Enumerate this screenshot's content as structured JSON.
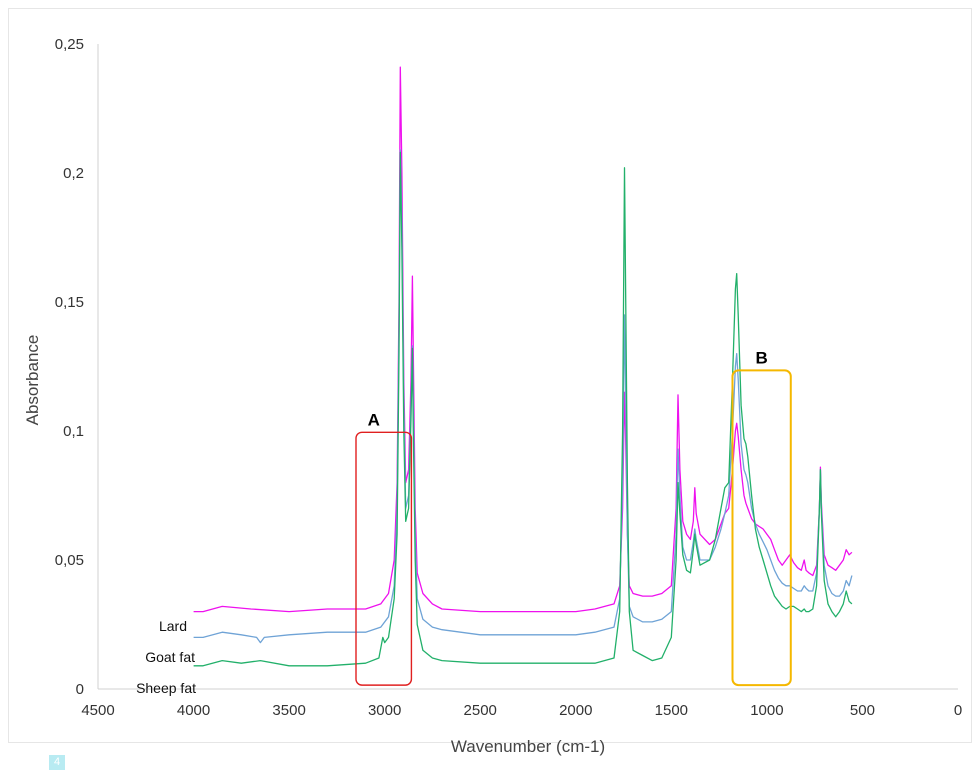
{
  "page_badge": "4",
  "chart_data": {
    "type": "line",
    "title": "",
    "xlabel": "Wavenumber (cm-1)",
    "ylabel": "Absorbance",
    "xlim": [
      4500,
      0
    ],
    "ylim": [
      0,
      0.25
    ],
    "x_reversed": true,
    "xticks": [
      "4500",
      "4000",
      "3500",
      "3000",
      "2500",
      "2000",
      "1500",
      "1000",
      "500",
      "0"
    ],
    "yticks": [
      "0",
      "0,05",
      "0,1",
      "0,15",
      "0,2",
      "0,25"
    ],
    "grid": false,
    "series": [
      {
        "name": "Lard",
        "color": "#ee11ee",
        "points": [
          [
            4000,
            0.03
          ],
          [
            3950,
            0.03
          ],
          [
            3850,
            0.032
          ],
          [
            3700,
            0.031
          ],
          [
            3500,
            0.03
          ],
          [
            3300,
            0.031
          ],
          [
            3100,
            0.031
          ],
          [
            3020,
            0.033
          ],
          [
            2980,
            0.037
          ],
          [
            2950,
            0.05
          ],
          [
            2935,
            0.08
          ],
          [
            2925,
            0.15
          ],
          [
            2918,
            0.241
          ],
          [
            2910,
            0.2
          ],
          [
            2900,
            0.12
          ],
          [
            2890,
            0.08
          ],
          [
            2875,
            0.085
          ],
          [
            2862,
            0.12
          ],
          [
            2855,
            0.16
          ],
          [
            2850,
            0.13
          ],
          [
            2840,
            0.07
          ],
          [
            2830,
            0.045
          ],
          [
            2800,
            0.037
          ],
          [
            2750,
            0.033
          ],
          [
            2700,
            0.031
          ],
          [
            2500,
            0.03
          ],
          [
            2200,
            0.03
          ],
          [
            2000,
            0.03
          ],
          [
            1900,
            0.031
          ],
          [
            1800,
            0.033
          ],
          [
            1770,
            0.04
          ],
          [
            1755,
            0.07
          ],
          [
            1745,
            0.115
          ],
          [
            1740,
            0.1
          ],
          [
            1730,
            0.06
          ],
          [
            1720,
            0.04
          ],
          [
            1700,
            0.037
          ],
          [
            1650,
            0.036
          ],
          [
            1600,
            0.036
          ],
          [
            1550,
            0.037
          ],
          [
            1500,
            0.04
          ],
          [
            1475,
            0.07
          ],
          [
            1465,
            0.114
          ],
          [
            1455,
            0.085
          ],
          [
            1440,
            0.065
          ],
          [
            1420,
            0.06
          ],
          [
            1400,
            0.058
          ],
          [
            1385,
            0.065
          ],
          [
            1377,
            0.078
          ],
          [
            1370,
            0.068
          ],
          [
            1350,
            0.06
          ],
          [
            1300,
            0.056
          ],
          [
            1270,
            0.058
          ],
          [
            1240,
            0.064
          ],
          [
            1220,
            0.068
          ],
          [
            1200,
            0.07
          ],
          [
            1180,
            0.085
          ],
          [
            1165,
            0.1
          ],
          [
            1158,
            0.103
          ],
          [
            1150,
            0.098
          ],
          [
            1135,
            0.085
          ],
          [
            1120,
            0.075
          ],
          [
            1110,
            0.072
          ],
          [
            1100,
            0.07
          ],
          [
            1080,
            0.066
          ],
          [
            1060,
            0.064
          ],
          [
            1040,
            0.063
          ],
          [
            1020,
            0.062
          ],
          [
            1000,
            0.06
          ],
          [
            980,
            0.058
          ],
          [
            960,
            0.054
          ],
          [
            940,
            0.05
          ],
          [
            920,
            0.048
          ],
          [
            900,
            0.05
          ],
          [
            880,
            0.052
          ],
          [
            860,
            0.049
          ],
          [
            840,
            0.047
          ],
          [
            820,
            0.046
          ],
          [
            805,
            0.05
          ],
          [
            795,
            0.046
          ],
          [
            780,
            0.045
          ],
          [
            760,
            0.044
          ],
          [
            740,
            0.048
          ],
          [
            725,
            0.07
          ],
          [
            720,
            0.086
          ],
          [
            715,
            0.072
          ],
          [
            700,
            0.052
          ],
          [
            680,
            0.048
          ],
          [
            660,
            0.047
          ],
          [
            640,
            0.046
          ],
          [
            620,
            0.048
          ],
          [
            600,
            0.05
          ],
          [
            585,
            0.054
          ],
          [
            570,
            0.052
          ],
          [
            555,
            0.053
          ]
        ]
      },
      {
        "name": "Goat fat",
        "color": "#6fa3d6",
        "points": [
          [
            4000,
            0.02
          ],
          [
            3950,
            0.02
          ],
          [
            3850,
            0.022
          ],
          [
            3750,
            0.021
          ],
          [
            3670,
            0.02
          ],
          [
            3650,
            0.018
          ],
          [
            3630,
            0.02
          ],
          [
            3500,
            0.021
          ],
          [
            3300,
            0.022
          ],
          [
            3100,
            0.022
          ],
          [
            3020,
            0.024
          ],
          [
            2980,
            0.028
          ],
          [
            2950,
            0.04
          ],
          [
            2935,
            0.07
          ],
          [
            2925,
            0.14
          ],
          [
            2918,
            0.209
          ],
          [
            2910,
            0.18
          ],
          [
            2900,
            0.11
          ],
          [
            2890,
            0.07
          ],
          [
            2875,
            0.075
          ],
          [
            2862,
            0.11
          ],
          [
            2855,
            0.133
          ],
          [
            2850,
            0.11
          ],
          [
            2840,
            0.06
          ],
          [
            2830,
            0.035
          ],
          [
            2800,
            0.027
          ],
          [
            2750,
            0.024
          ],
          [
            2700,
            0.023
          ],
          [
            2500,
            0.021
          ],
          [
            2200,
            0.021
          ],
          [
            2000,
            0.021
          ],
          [
            1900,
            0.022
          ],
          [
            1800,
            0.024
          ],
          [
            1770,
            0.035
          ],
          [
            1755,
            0.08
          ],
          [
            1745,
            0.145
          ],
          [
            1740,
            0.12
          ],
          [
            1730,
            0.06
          ],
          [
            1720,
            0.032
          ],
          [
            1700,
            0.028
          ],
          [
            1650,
            0.026
          ],
          [
            1600,
            0.026
          ],
          [
            1550,
            0.027
          ],
          [
            1500,
            0.03
          ],
          [
            1475,
            0.06
          ],
          [
            1465,
            0.093
          ],
          [
            1455,
            0.075
          ],
          [
            1440,
            0.055
          ],
          [
            1420,
            0.05
          ],
          [
            1400,
            0.05
          ],
          [
            1385,
            0.057
          ],
          [
            1377,
            0.062
          ],
          [
            1370,
            0.058
          ],
          [
            1350,
            0.05
          ],
          [
            1300,
            0.05
          ],
          [
            1270,
            0.055
          ],
          [
            1240,
            0.062
          ],
          [
            1220,
            0.068
          ],
          [
            1200,
            0.075
          ],
          [
            1180,
            0.1
          ],
          [
            1165,
            0.125
          ],
          [
            1158,
            0.13
          ],
          [
            1150,
            0.12
          ],
          [
            1135,
            0.095
          ],
          [
            1120,
            0.085
          ],
          [
            1110,
            0.083
          ],
          [
            1100,
            0.08
          ],
          [
            1080,
            0.07
          ],
          [
            1060,
            0.064
          ],
          [
            1040,
            0.06
          ],
          [
            1020,
            0.057
          ],
          [
            1000,
            0.054
          ],
          [
            980,
            0.05
          ],
          [
            960,
            0.046
          ],
          [
            940,
            0.043
          ],
          [
            920,
            0.041
          ],
          [
            900,
            0.04
          ],
          [
            880,
            0.04
          ],
          [
            860,
            0.039
          ],
          [
            840,
            0.038
          ],
          [
            820,
            0.038
          ],
          [
            805,
            0.04
          ],
          [
            795,
            0.039
          ],
          [
            780,
            0.038
          ],
          [
            760,
            0.038
          ],
          [
            740,
            0.045
          ],
          [
            725,
            0.07
          ],
          [
            720,
            0.085
          ],
          [
            715,
            0.07
          ],
          [
            700,
            0.048
          ],
          [
            680,
            0.04
          ],
          [
            660,
            0.037
          ],
          [
            640,
            0.036
          ],
          [
            620,
            0.036
          ],
          [
            600,
            0.038
          ],
          [
            585,
            0.042
          ],
          [
            570,
            0.04
          ],
          [
            555,
            0.044
          ]
        ]
      },
      {
        "name": "Sheep fat",
        "color": "#22b06a",
        "points": [
          [
            4000,
            0.009
          ],
          [
            3950,
            0.009
          ],
          [
            3850,
            0.011
          ],
          [
            3750,
            0.01
          ],
          [
            3650,
            0.011
          ],
          [
            3500,
            0.009
          ],
          [
            3300,
            0.009
          ],
          [
            3100,
            0.01
          ],
          [
            3030,
            0.012
          ],
          [
            3010,
            0.02
          ],
          [
            3000,
            0.018
          ],
          [
            2980,
            0.02
          ],
          [
            2950,
            0.035
          ],
          [
            2935,
            0.06
          ],
          [
            2925,
            0.13
          ],
          [
            2918,
            0.208
          ],
          [
            2910,
            0.17
          ],
          [
            2900,
            0.1
          ],
          [
            2890,
            0.065
          ],
          [
            2875,
            0.07
          ],
          [
            2862,
            0.105
          ],
          [
            2855,
            0.132
          ],
          [
            2850,
            0.1
          ],
          [
            2840,
            0.05
          ],
          [
            2830,
            0.025
          ],
          [
            2800,
            0.015
          ],
          [
            2750,
            0.012
          ],
          [
            2700,
            0.011
          ],
          [
            2500,
            0.01
          ],
          [
            2200,
            0.01
          ],
          [
            2000,
            0.01
          ],
          [
            1900,
            0.01
          ],
          [
            1800,
            0.012
          ],
          [
            1770,
            0.03
          ],
          [
            1755,
            0.1
          ],
          [
            1745,
            0.202
          ],
          [
            1740,
            0.16
          ],
          [
            1730,
            0.08
          ],
          [
            1720,
            0.03
          ],
          [
            1700,
            0.015
          ],
          [
            1650,
            0.013
          ],
          [
            1600,
            0.011
          ],
          [
            1550,
            0.012
          ],
          [
            1500,
            0.02
          ],
          [
            1475,
            0.05
          ],
          [
            1465,
            0.08
          ],
          [
            1455,
            0.068
          ],
          [
            1440,
            0.052
          ],
          [
            1420,
            0.046
          ],
          [
            1400,
            0.045
          ],
          [
            1385,
            0.054
          ],
          [
            1377,
            0.06
          ],
          [
            1370,
            0.056
          ],
          [
            1350,
            0.048
          ],
          [
            1300,
            0.05
          ],
          [
            1270,
            0.058
          ],
          [
            1240,
            0.07
          ],
          [
            1220,
            0.078
          ],
          [
            1200,
            0.08
          ],
          [
            1180,
            0.12
          ],
          [
            1165,
            0.155
          ],
          [
            1158,
            0.161
          ],
          [
            1150,
            0.145
          ],
          [
            1135,
            0.11
          ],
          [
            1120,
            0.097
          ],
          [
            1110,
            0.095
          ],
          [
            1100,
            0.09
          ],
          [
            1080,
            0.075
          ],
          [
            1060,
            0.062
          ],
          [
            1040,
            0.055
          ],
          [
            1020,
            0.05
          ],
          [
            1000,
            0.045
          ],
          [
            980,
            0.04
          ],
          [
            960,
            0.036
          ],
          [
            940,
            0.034
          ],
          [
            920,
            0.032
          ],
          [
            900,
            0.031
          ],
          [
            880,
            0.032
          ],
          [
            860,
            0.032
          ],
          [
            840,
            0.031
          ],
          [
            820,
            0.03
          ],
          [
            805,
            0.031
          ],
          [
            795,
            0.03
          ],
          [
            780,
            0.03
          ],
          [
            760,
            0.031
          ],
          [
            740,
            0.04
          ],
          [
            725,
            0.07
          ],
          [
            720,
            0.085
          ],
          [
            715,
            0.068
          ],
          [
            700,
            0.042
          ],
          [
            680,
            0.033
          ],
          [
            660,
            0.03
          ],
          [
            640,
            0.028
          ],
          [
            620,
            0.03
          ],
          [
            600,
            0.033
          ],
          [
            585,
            0.038
          ],
          [
            570,
            0.034
          ],
          [
            555,
            0.033
          ]
        ]
      }
    ],
    "regions": [
      {
        "label": "A",
        "x_range": [
          3150,
          2860
        ],
        "y_range": [
          0.0015,
          0.0995
        ],
        "color": "#e02020"
      },
      {
        "label": "B",
        "x_range": [
          1180,
          875
        ],
        "y_range": [
          0.0015,
          0.1235
        ],
        "color": "#f5b800"
      }
    ]
  }
}
